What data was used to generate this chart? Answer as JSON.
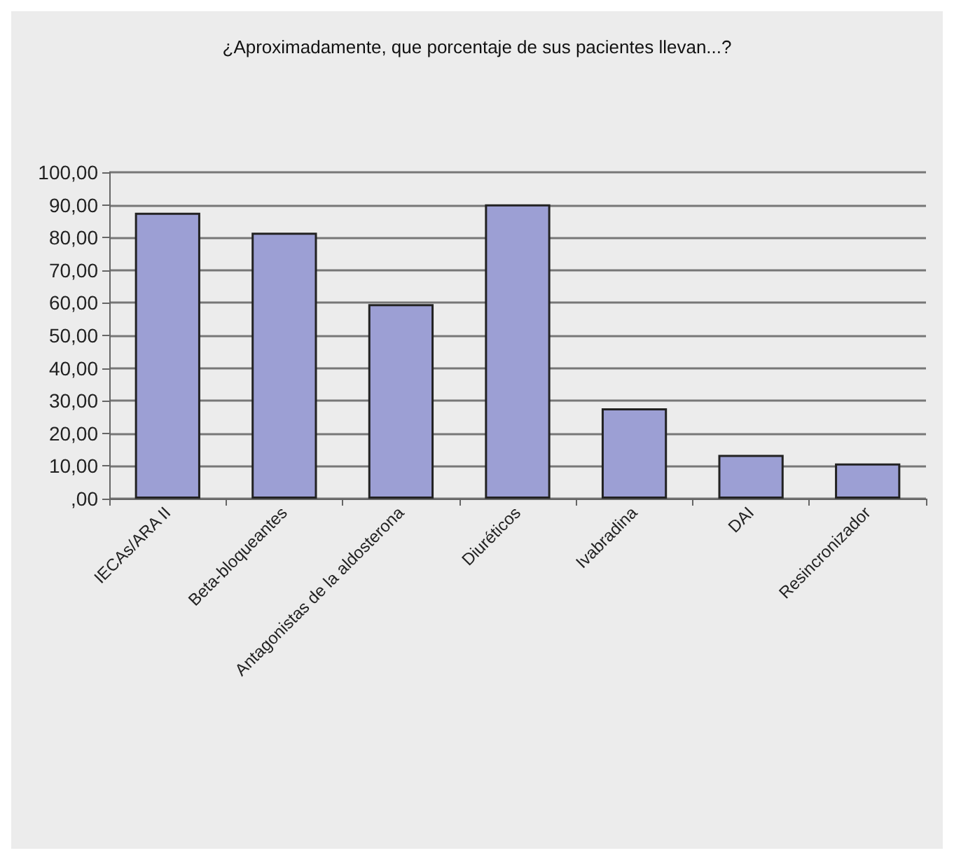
{
  "chart_data": {
    "type": "bar",
    "title": "¿Aproximadamente, que porcentaje de sus pacientes llevan...?",
    "categories": [
      "IECAs/ARA II",
      "Beta-bloqueantes",
      "Antagonistas de la aldosterona",
      "Diuréticos",
      "Ivabradina",
      "DAI",
      "Resincronizador"
    ],
    "values": [
      87.6,
      81.5,
      59.6,
      90.2,
      27.7,
      13.4,
      10.8
    ],
    "color": "#9c9fd4",
    "ylim": [
      0,
      100
    ],
    "yticks": [
      {
        "value": 0,
        "label": ",00"
      },
      {
        "value": 10,
        "label": "10,00"
      },
      {
        "value": 20,
        "label": "20,00"
      },
      {
        "value": 30,
        "label": "30,00"
      },
      {
        "value": 40,
        "label": "40,00"
      },
      {
        "value": 50,
        "label": "50,00"
      },
      {
        "value": 60,
        "label": "60,00"
      },
      {
        "value": 70,
        "label": "70,00"
      },
      {
        "value": 80,
        "label": "80,00"
      },
      {
        "value": 90,
        "label": "90,00"
      },
      {
        "value": 100,
        "label": "100,00"
      }
    ],
    "grid": "y"
  }
}
